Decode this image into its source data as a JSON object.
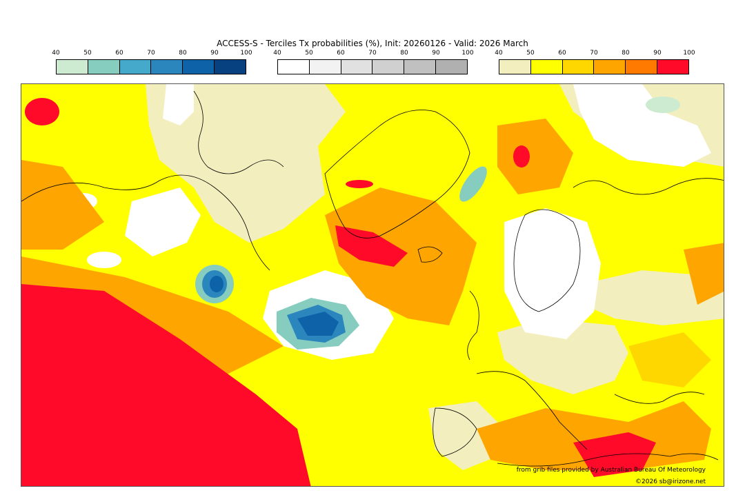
{
  "title": "ACCESS-S - Terciles Tx probabilities (%), Init: 20260126 - Valid: 2026 March",
  "colorbars": {
    "below": {
      "ticks": [
        "40",
        "50",
        "60",
        "70",
        "80",
        "90",
        "100"
      ],
      "colors": [
        "#cdebd0",
        "#86cdc0",
        "#45a9cc",
        "#2a86bd",
        "#0e62a8",
        "#08417f"
      ]
    },
    "normal": {
      "ticks": [
        "40",
        "50",
        "60",
        "70",
        "80",
        "90",
        "100"
      ],
      "colors": [
        "#ffffff",
        "#f2f2f2",
        "#e1e1e1",
        "#d0d0d0",
        "#c0c0c0",
        "#b0b0b0"
      ]
    },
    "above": {
      "ticks": [
        "40",
        "50",
        "60",
        "70",
        "80",
        "90",
        "100"
      ],
      "colors": [
        "#f2eebd",
        "#ffff00",
        "#ffd700",
        "#ffa500",
        "#ff7a00",
        "#ff0a28"
      ]
    }
  },
  "credits": {
    "source": "from grib files provided by Australian Bureau Of Meteorology",
    "copyright": "©2026 sb@irizone.net"
  }
}
